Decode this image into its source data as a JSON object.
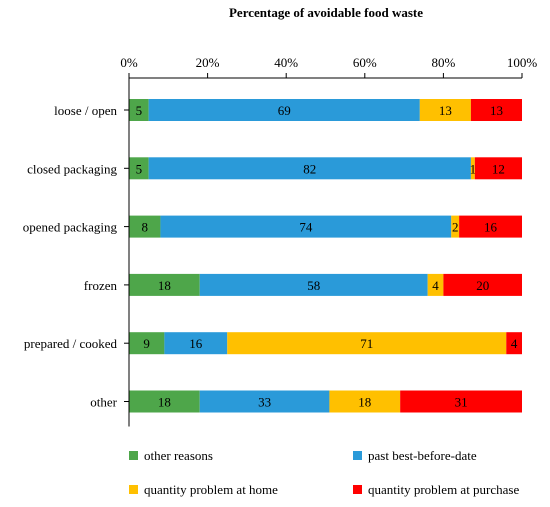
{
  "chart_data": {
    "type": "bar",
    "orientation": "horizontal",
    "stacked": true,
    "title": "Percentage of avoidable food waste",
    "xlim": [
      0,
      100
    ],
    "x_ticks": [
      "0%",
      "20%",
      "40%",
      "60%",
      "80%",
      "100%"
    ],
    "x_axis_position": "top",
    "grid": false,
    "legend_position": "bottom",
    "categories": [
      "loose / open",
      "closed packaging",
      "opened packaging",
      "frozen",
      "prepared / cooked",
      "other"
    ],
    "series": [
      {
        "name": "other reasons",
        "color": "#4ea64a",
        "values": [
          5,
          5,
          8,
          18,
          9,
          18
        ],
        "labels": [
          "5",
          "5",
          "8",
          "18",
          "9",
          "18"
        ]
      },
      {
        "name": "past best-before-date",
        "color": "#2a9ad9",
        "values": [
          69,
          82,
          74,
          58,
          16,
          33
        ],
        "labels": [
          "69",
          "82",
          "74",
          "58",
          "16",
          "33"
        ]
      },
      {
        "name": "quantity problem at home",
        "color": "#ffc000",
        "values": [
          13,
          1,
          2,
          4,
          71,
          18
        ],
        "labels": [
          "13",
          "1",
          "2",
          "4",
          "71",
          "18"
        ]
      },
      {
        "name": "quantity problem at purchase",
        "color": "#ff0000",
        "values": [
          13,
          12,
          16,
          20,
          4,
          31
        ],
        "labels": [
          "13",
          "12",
          "16",
          "20",
          "4",
          "31"
        ]
      }
    ]
  }
}
